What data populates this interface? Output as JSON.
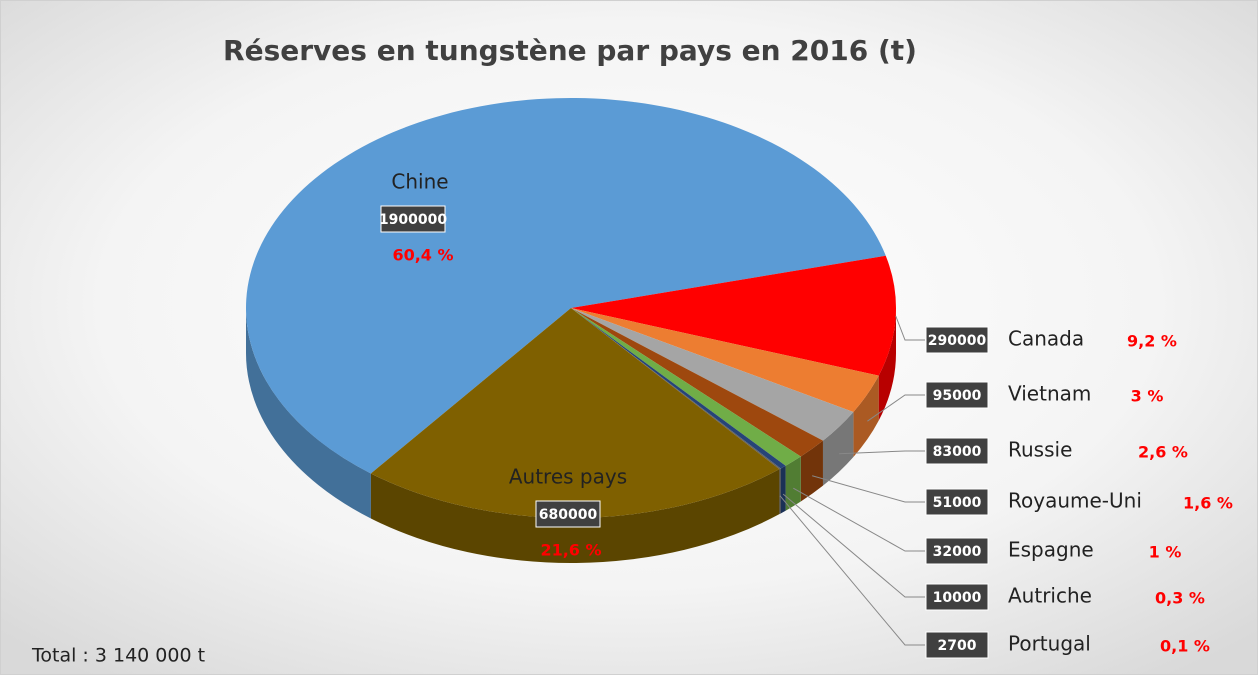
{
  "chart_data": {
    "type": "pie3d",
    "title": "Réserves en tungstène par pays en 2016 (t)",
    "note": "Total : 3 140 000 t",
    "categories": [
      "Chine",
      "Canada",
      "Vietnam",
      "Russie",
      "Royaume-Uni",
      "Espagne",
      "Autriche",
      "Portugal",
      "Autres pays"
    ],
    "values": [
      1900000,
      290000,
      95000,
      83000,
      51000,
      32000,
      10000,
      2700,
      680000
    ],
    "percent_labels": [
      "60,4 %",
      "9,2 %",
      "3 %",
      "2,6 %",
      "1,6 %",
      "1 %",
      "0,3 %",
      "0,1 %",
      "21,6 %"
    ],
    "colors": [
      "#5b9bd5",
      "#ff0000",
      "#ed7d31",
      "#a5a5a5",
      "#9e480e",
      "#70ad47",
      "#264478",
      "#636363",
      "#7f6000"
    ]
  }
}
